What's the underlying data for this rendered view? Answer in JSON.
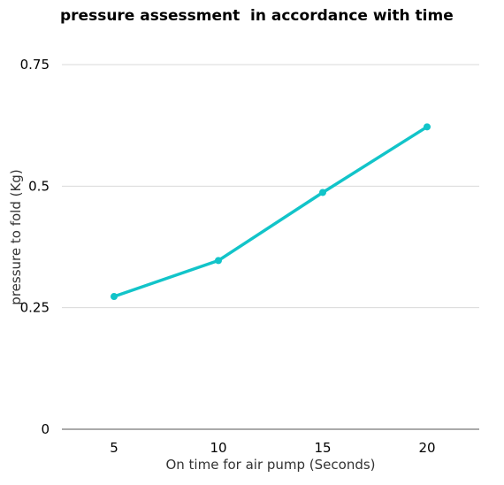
{
  "chart_data": {
    "type": "line",
    "title": "pressure assessment  in accordance with time",
    "xlabel": "On time for air pump (Seconds)",
    "ylabel": "pressure to fold (Kg)",
    "categories": [
      "5",
      "10",
      "15",
      "20"
    ],
    "x": [
      5,
      10,
      15,
      20
    ],
    "yticks": [
      "0",
      "0.25",
      "0.5",
      "0.75"
    ],
    "ylim": [
      0,
      0.75
    ],
    "grid": true,
    "legend": "none",
    "series": [
      {
        "values": [
          0.273,
          0.347,
          0.487,
          0.622
        ],
        "color": "#12c4c9"
      }
    ]
  }
}
